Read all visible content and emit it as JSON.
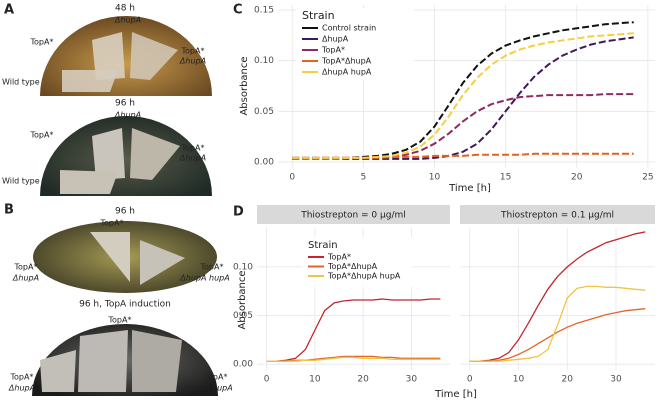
{
  "panels": {
    "A": {
      "letter": "A",
      "plate1": {
        "title": "48 h",
        "top": "ΔhupA",
        "left": "TopA*",
        "right1": "TopA*",
        "right2": "ΔhupA",
        "bottom_left": "Wild type"
      },
      "plate2": {
        "title": "96 h",
        "top": "ΔhupA",
        "left": "TopA*",
        "right1": "TopA*",
        "right2": "ΔhupA",
        "bottom_left": "Wild type"
      }
    },
    "B": {
      "letter": "B",
      "plate1": {
        "title": "96 h",
        "top": "TopA*",
        "left1": "TopA*",
        "left2": "ΔhupA",
        "right1": "TopA*",
        "right2": "ΔhupA hupA"
      },
      "plate2": {
        "title": "96 h, TopA induction",
        "top": "TopA*",
        "left1": "TopA*",
        "left2": "ΔhupA",
        "right1": "TopA*",
        "right2": "ΔhupA hupA"
      }
    },
    "C": {
      "letter": "C"
    },
    "D": {
      "letter": "D"
    }
  },
  "chart_data": [
    {
      "type": "line",
      "x_label": "Time [h]",
      "y_label": "Absorbance",
      "legend_title": "Strain",
      "x": [
        0,
        1,
        2,
        3,
        4,
        5,
        6,
        7,
        8,
        9,
        10,
        11,
        12,
        13,
        14,
        15,
        16,
        17,
        18,
        19,
        20,
        21,
        22,
        23,
        24
      ],
      "xlim": [
        -1,
        25.5
      ],
      "xticks": [
        0,
        5,
        10,
        15,
        20,
        25
      ],
      "ylim": [
        -0.006,
        0.155
      ],
      "yticks": [
        {
          "value": 0,
          "label": "0.00"
        },
        {
          "value": 0.05,
          "label": "0.05"
        },
        {
          "value": 0.1,
          "label": "0.10"
        },
        {
          "value": 0.15,
          "label": "0.15"
        }
      ],
      "grid": true,
      "series": [
        {
          "name": "Control strain",
          "color": "#111111",
          "values": [
            0.004,
            0.004,
            0.004,
            0.004,
            0.004,
            0.005,
            0.006,
            0.008,
            0.012,
            0.02,
            0.035,
            0.056,
            0.078,
            0.095,
            0.107,
            0.115,
            0.12,
            0.124,
            0.127,
            0.13,
            0.132,
            0.134,
            0.136,
            0.137,
            0.138
          ]
        },
        {
          "name": "ΔhupA",
          "color": "#3d1a5e",
          "values": [
            0.003,
            0.003,
            0.003,
            0.003,
            0.003,
            0.003,
            0.003,
            0.003,
            0.003,
            0.003,
            0.004,
            0.006,
            0.01,
            0.018,
            0.032,
            0.05,
            0.068,
            0.084,
            0.096,
            0.105,
            0.111,
            0.116,
            0.119,
            0.121,
            0.123
          ]
        },
        {
          "name": "TopA*",
          "color": "#8e2a63",
          "values": [
            0.004,
            0.004,
            0.004,
            0.004,
            0.004,
            0.004,
            0.004,
            0.005,
            0.007,
            0.011,
            0.018,
            0.028,
            0.04,
            0.05,
            0.057,
            0.061,
            0.064,
            0.065,
            0.066,
            0.066,
            0.066,
            0.066,
            0.067,
            0.067,
            0.067
          ]
        },
        {
          "name": "TopA*ΔhupA",
          "color": "#e2621e",
          "values": [
            0.003,
            0.003,
            0.003,
            0.003,
            0.004,
            0.004,
            0.004,
            0.005,
            0.005,
            0.005,
            0.006,
            0.006,
            0.006,
            0.007,
            0.007,
            0.007,
            0.007,
            0.008,
            0.008,
            0.008,
            0.008,
            0.008,
            0.008,
            0.008,
            0.008
          ]
        },
        {
          "name": "ΔhupA hupA",
          "color": "#f3d03e",
          "values": [
            0.004,
            0.004,
            0.004,
            0.004,
            0.004,
            0.004,
            0.005,
            0.006,
            0.009,
            0.015,
            0.027,
            0.045,
            0.066,
            0.083,
            0.096,
            0.105,
            0.111,
            0.115,
            0.118,
            0.12,
            0.122,
            0.124,
            0.125,
            0.126,
            0.127
          ]
        }
      ]
    },
    {
      "type": "line",
      "facet_title": "Thiostrepton = 0 μg/ml",
      "x_label": "Time [h]",
      "y_label": "Absorbance",
      "legend_title": "Strain",
      "x": [
        0,
        2,
        4,
        6,
        8,
        10,
        12,
        14,
        16,
        18,
        20,
        22,
        24,
        26,
        28,
        30,
        32,
        34,
        36
      ],
      "xlim": [
        -2,
        38
      ],
      "xticks": [
        0,
        10,
        20,
        30
      ],
      "ylim": [
        -0.006,
        0.14
      ],
      "yticks": [
        {
          "value": 0,
          "label": "0.00"
        },
        {
          "value": 0.05,
          "label": "0.05"
        },
        {
          "value": 0.1,
          "label": "0.10"
        }
      ],
      "grid": true,
      "series": [
        {
          "name": "TopA*",
          "color": "#c1272d",
          "values": [
            0.003,
            0.003,
            0.004,
            0.006,
            0.015,
            0.035,
            0.055,
            0.063,
            0.065,
            0.066,
            0.066,
            0.066,
            0.067,
            0.066,
            0.066,
            0.066,
            0.066,
            0.067,
            0.067
          ]
        },
        {
          "name": "TopA*ΔhupA",
          "color": "#e2652a",
          "values": [
            0.003,
            0.003,
            0.003,
            0.004,
            0.004,
            0.005,
            0.006,
            0.007,
            0.008,
            0.008,
            0.008,
            0.008,
            0.007,
            0.007,
            0.006,
            0.006,
            0.006,
            0.006,
            0.006
          ]
        },
        {
          "name": "TopA*ΔhupA hupA",
          "color": "#f0c445",
          "values": [
            0.003,
            0.003,
            0.003,
            0.003,
            0.004,
            0.004,
            0.005,
            0.006,
            0.007,
            0.007,
            0.006,
            0.006,
            0.006,
            0.005,
            0.005,
            0.005,
            0.005,
            0.005,
            0.005
          ]
        }
      ]
    },
    {
      "type": "line",
      "facet_title": "Thiostrepton = 0.1 μg/ml",
      "x": [
        0,
        2,
        4,
        6,
        8,
        10,
        12,
        14,
        16,
        18,
        20,
        22,
        24,
        26,
        28,
        30,
        32,
        34,
        36
      ],
      "xlim": [
        -2,
        38
      ],
      "xticks": [
        0,
        10,
        20,
        30
      ],
      "ylim": [
        -0.006,
        0.14
      ],
      "yticks": [
        0,
        0.05,
        0.1
      ],
      "grid": true,
      "series": [
        {
          "color": "#c1272d",
          "values": [
            0.003,
            0.003,
            0.004,
            0.006,
            0.012,
            0.025,
            0.042,
            0.06,
            0.077,
            0.09,
            0.1,
            0.108,
            0.115,
            0.12,
            0.125,
            0.128,
            0.131,
            0.134,
            0.136
          ]
        },
        {
          "color": "#e2652a",
          "values": [
            0.003,
            0.003,
            0.003,
            0.004,
            0.006,
            0.01,
            0.015,
            0.021,
            0.027,
            0.033,
            0.038,
            0.042,
            0.045,
            0.048,
            0.051,
            0.053,
            0.055,
            0.056,
            0.057
          ]
        },
        {
          "color": "#f0c445",
          "values": [
            0.003,
            0.003,
            0.003,
            0.003,
            0.004,
            0.005,
            0.006,
            0.008,
            0.015,
            0.04,
            0.068,
            0.078,
            0.08,
            0.08,
            0.079,
            0.079,
            0.078,
            0.077,
            0.076
          ]
        }
      ]
    }
  ]
}
